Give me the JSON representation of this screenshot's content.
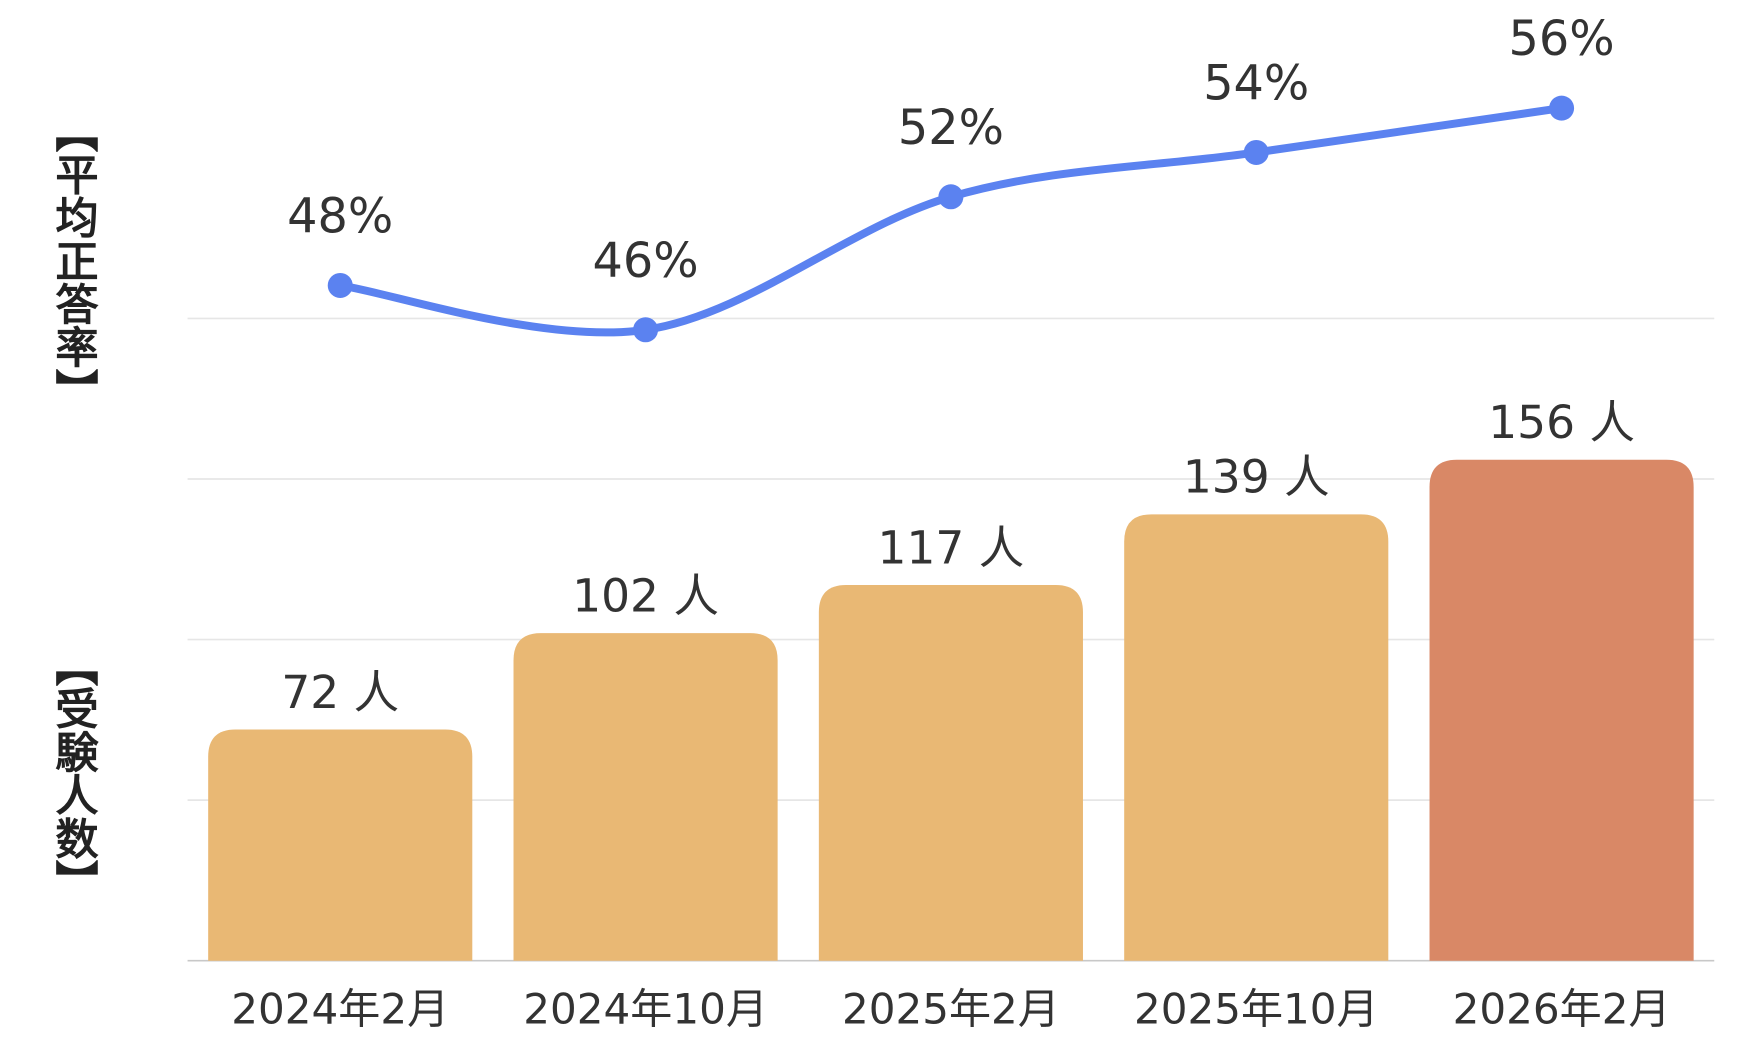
{
  "chart_data": {
    "type": "combo",
    "categories": [
      "2024年2月",
      "2024年10月",
      "2025年2月",
      "2025年10月",
      "2026年2月"
    ],
    "series": [
      {
        "type": "bar",
        "colors": [
          "#e9b874",
          "#e9b874",
          "#e9b874",
          "#e9b874",
          "#d98866"
        ],
        "values": [
          72,
          102,
          117,
          139,
          156
        ],
        "value_labels": [
          "72 人",
          "102 人",
          "117 人",
          "139 人",
          "156 人"
        ]
      },
      {
        "type": "line",
        "axis": "y2",
        "color": "#5b82f0",
        "values": [
          48,
          46,
          52,
          54,
          56
        ],
        "value_labels": [
          "48%",
          "46%",
          "52%",
          "54%",
          "56%"
        ]
      }
    ],
    "ylabel": "【受験人数】",
    "y2label": "【平均正答率】",
    "ylim": [
      0,
      200
    ],
    "yticks": [
      0,
      50,
      100,
      150,
      200
    ],
    "y2lim": [
      40,
      60
    ],
    "grid": true
  }
}
